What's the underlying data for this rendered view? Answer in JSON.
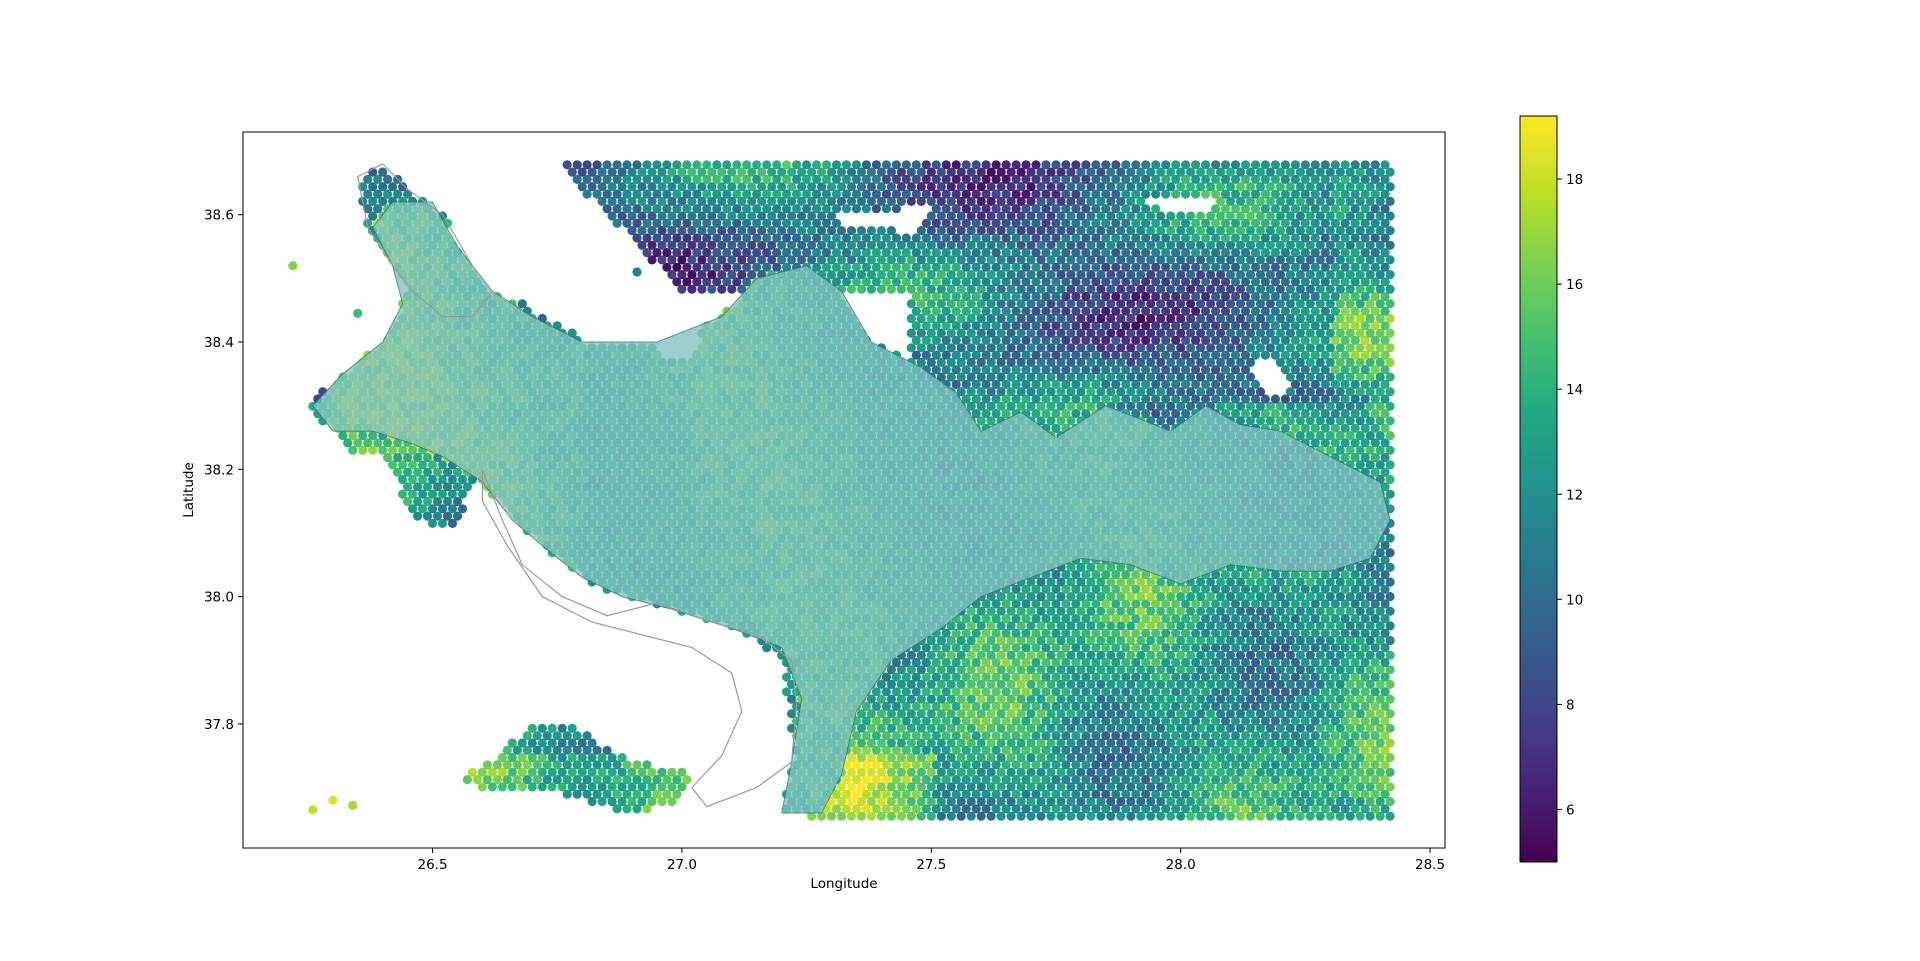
{
  "chart_data": {
    "type": "scatter",
    "title": "",
    "xlabel": "Longitude",
    "ylabel": "Latitude",
    "xlim": [
      26.12,
      28.53
    ],
    "ylim": [
      37.605,
      38.73
    ],
    "xticks": [
      {
        "value": 26.5,
        "label": "26.5"
      },
      {
        "value": 27.0,
        "label": "27.0"
      },
      {
        "value": 27.5,
        "label": "27.5"
      },
      {
        "value": 28.0,
        "label": "28.0"
      },
      {
        "value": 28.5,
        "label": "28.5"
      }
    ],
    "yticks": [
      {
        "value": 37.8,
        "label": "37.8"
      },
      {
        "value": 38.0,
        "label": "38.0"
      },
      {
        "value": 38.2,
        "label": "38.2"
      },
      {
        "value": 38.4,
        "label": "38.4"
      },
      {
        "value": 38.6,
        "label": "38.6"
      }
    ],
    "colormap": "viridis",
    "color_range": [
      5.0,
      19.2
    ],
    "colorbar_ticks": [
      {
        "value": 6,
        "label": "6"
      },
      {
        "value": 8,
        "label": "8"
      },
      {
        "value": 10,
        "label": "10"
      },
      {
        "value": 12,
        "label": "12"
      },
      {
        "value": 14,
        "label": "14"
      },
      {
        "value": 16,
        "label": "16"
      },
      {
        "value": 18,
        "label": "18"
      }
    ],
    "grid": false,
    "overlay": {
      "color": "#7fc2c0",
      "opacity": 0.78,
      "description_hidden": true
    },
    "grid_spacing": {
      "dx": 0.02,
      "dy": 0.0115
    },
    "point_clusters": [
      {
        "lon": 26.22,
        "lat": 38.52,
        "value": 16.5
      },
      {
        "lon": 26.35,
        "lat": 38.445,
        "value": 14.8
      },
      {
        "lon": 26.91,
        "lat": 38.51,
        "value": 11.2
      },
      {
        "lon": 26.26,
        "lat": 37.665,
        "value": 17.8
      },
      {
        "lon": 26.3,
        "lat": 37.68,
        "value": 18.4
      },
      {
        "lon": 26.34,
        "lat": 37.672,
        "value": 17.2
      }
    ]
  },
  "colors": {
    "axes": "#000000",
    "coastline": "#9a9a9a",
    "background": "#ffffff"
  }
}
